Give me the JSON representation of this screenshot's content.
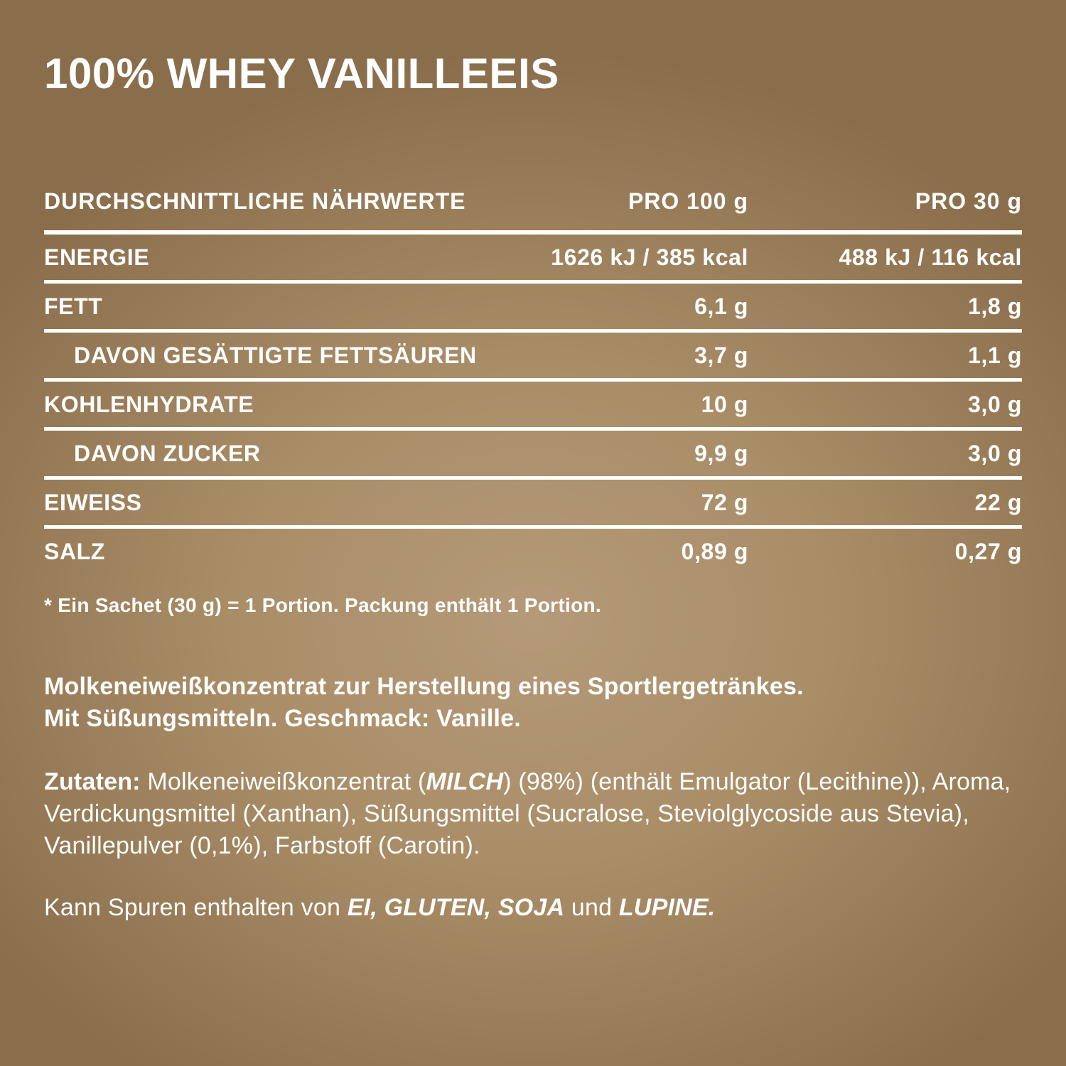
{
  "product": {
    "title": "100% WHEY VANILLEEIS"
  },
  "colors": {
    "text": "#ffffff",
    "background_center": "#b59a79",
    "background_edge": "#8a6e4c",
    "rule": "#ffffff"
  },
  "table": {
    "header": {
      "label": "DURCHSCHNITTLICHE NÄHRWERTE",
      "per100": "PRO 100 g",
      "per30": "PRO 30 g"
    },
    "rows": [
      {
        "label": "ENERGIE",
        "per100": "1626 kJ / 385 kcal",
        "per30": "488 kJ / 116 kcal",
        "indent": false
      },
      {
        "label": "FETT",
        "per100": "6,1 g",
        "per30": "1,8 g",
        "indent": false
      },
      {
        "label": "DAVON GESÄTTIGTE FETTSÄUREN",
        "per100": "3,7 g",
        "per30": "1,1 g",
        "indent": true
      },
      {
        "label": "KOHLENHYDRATE",
        "per100": "10 g",
        "per30": "3,0 g",
        "indent": false
      },
      {
        "label": "DAVON ZUCKER",
        "per100": "9,9 g",
        "per30": "3,0 g",
        "indent": true
      },
      {
        "label": "EIWEISS",
        "per100": "72 g",
        "per30": "22 g",
        "indent": false
      },
      {
        "label": "SALZ",
        "per100": "0,89 g",
        "per30": "0,27 g",
        "indent": false
      }
    ],
    "footnote": "* Ein Sachet (30 g) = 1 Portion. Packung enthält 1 Portion."
  },
  "description": {
    "line1": "Molkeneiweißkonzentrat zur Herstellung eines Sportlergetränkes.",
    "line2": "Mit Süßungsmitteln. Geschmack: Vanille."
  },
  "ingredients": {
    "label": "Zutaten:",
    "part1": " Molkeneiweißkonzentrat (",
    "allergen_milch": "MILCH",
    "part2": ") (98%) (enthält Emulgator (Lecithine)), Aroma, Verdickungsmittel (Xanthan), Süßungsmittel (Sucralose, Steviolglycoside aus Stevia), Vanillepulver (0,1%), Farbstoff (Carotin)."
  },
  "traces": {
    "part1": "Kann Spuren enthalten von ",
    "allergens1": "EI, GLUTEN, SOJA",
    "part2": " und ",
    "allergens2": "LUPINE."
  }
}
